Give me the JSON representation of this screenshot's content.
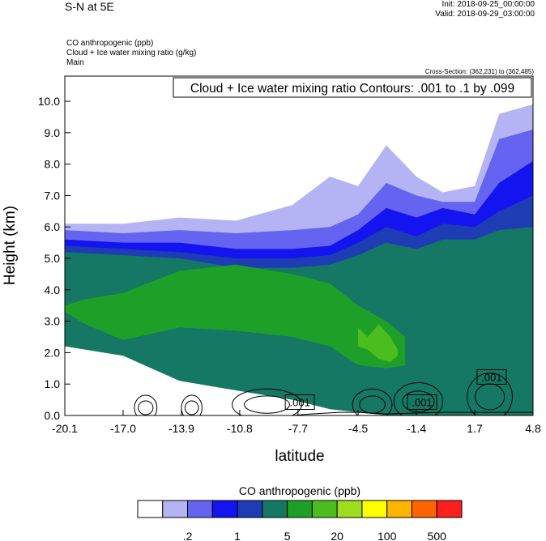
{
  "header": {
    "title": "S-N at 5E",
    "init": "Init: 2018-09-25_00:00:00",
    "valid": "Valid: 2018-09-29_03:00:00",
    "fields": [
      "CO anthropogenic   (ppb)",
      "Cloud + Ice water mixing ratio   (g/kg)",
      "Main"
    ],
    "cross_section": "Cross-Section: (362,231) to (362,485)"
  },
  "chart_data": {
    "type": "heatmap",
    "title": "",
    "xlabel": "latitude",
    "ylabel": "Height (km)",
    "xlim": [
      -20.1,
      4.8
    ],
    "ylim": [
      0.0,
      10.8
    ],
    "x_ticks": [
      "-20.1",
      "-17.0",
      "-13.9",
      "-10.8",
      "-7.7",
      "-4.5",
      "-1.4",
      "1.7",
      "4.8"
    ],
    "y_ticks": [
      "0.0",
      "1.0",
      "2.0",
      "3.0",
      "4.0",
      "5.0",
      "6.0",
      "7.0",
      "8.0",
      "9.0",
      "10.0"
    ],
    "contour_label": "Cloud + Ice water mixing ratio Contours: .001 to .1 by .099",
    "contour_value_labels": [
      {
        "text": ".001",
        "x": -7.6,
        "y": 0.4
      },
      {
        "text": ".001",
        "x": -1.1,
        "y": 0.4
      },
      {
        "text": ".001",
        "x": 2.6,
        "y": 1.2
      }
    ],
    "colorbar": {
      "title": "CO anthropogenic  (ppb)",
      "colors": [
        "#ffffff",
        "#b4b4f5",
        "#6464f0",
        "#1414f0",
        "#1e3cb4",
        "#147864",
        "#1ea028",
        "#4bbe1e",
        "#a0dc1e",
        "#ffff00",
        "#ffb400",
        "#ff6400",
        "#ff1e1e"
      ],
      "labels": [
        ".2",
        "1",
        "5",
        "20",
        "100",
        "500"
      ]
    },
    "bands": [
      {
        "color": "#b4b4f5",
        "x": [
          -20.1,
          -17,
          -14,
          -11,
          -8,
          -6,
          -4.5,
          -3,
          -1.4,
          0,
          1.7,
          3,
          4.8
        ],
        "top": [
          6.1,
          6.1,
          6.3,
          6.2,
          6.7,
          7.6,
          7.3,
          8.6,
          7.6,
          7.1,
          7.3,
          9.6,
          9.9
        ],
        "bottom": [
          2.7,
          2.4,
          1.5,
          1.2,
          0.9,
          0.6,
          0.6,
          0.6,
          0.9,
          0.9,
          0.9,
          0.9,
          0.9
        ]
      },
      {
        "color": "#6464f0",
        "x": [
          -20.1,
          -17,
          -14,
          -11,
          -8,
          -6,
          -4.5,
          -3,
          -1.4,
          0,
          1.7,
          3,
          4.8
        ],
        "top": [
          5.9,
          5.8,
          5.9,
          5.8,
          5.9,
          6.0,
          6.4,
          7.4,
          7.0,
          6.8,
          6.8,
          8.8,
          9.1
        ],
        "bottom": [
          2.6,
          2.3,
          1.4,
          1.1,
          0.8,
          0.5,
          0.5,
          0.4,
          0.7,
          0.7,
          0.7,
          0.7,
          0.7
        ]
      },
      {
        "color": "#1414f0",
        "x": [
          -20.1,
          -17,
          -14,
          -11,
          -8,
          -6,
          -4.5,
          -3,
          -1.4,
          0,
          1.7,
          3,
          4.8
        ],
        "top": [
          5.6,
          5.5,
          5.5,
          5.3,
          5.3,
          5.4,
          5.9,
          6.6,
          6.3,
          6.6,
          6.4,
          7.4,
          8.1
        ],
        "bottom": [
          2.4,
          2.1,
          1.3,
          1.0,
          0.7,
          0.4,
          0.3,
          0.3,
          0.4,
          0.5,
          0.5,
          0.5,
          0.5
        ]
      },
      {
        "color": "#1e3cb4",
        "x": [
          -20.1,
          -17,
          -14,
          -11,
          -8,
          -6,
          -4.5,
          -3,
          -1.4,
          0,
          1.7,
          3,
          4.8
        ],
        "top": [
          5.4,
          5.3,
          5.2,
          5.0,
          5.0,
          5.1,
          5.5,
          6.0,
          5.7,
          6.1,
          6.0,
          6.5,
          7.0
        ],
        "bottom": [
          2.3,
          2.0,
          1.2,
          0.9,
          0.6,
          0.3,
          0.2,
          0.1,
          0.2,
          0.3,
          0.3,
          0.3,
          0.3
        ]
      },
      {
        "color": "#147864",
        "x": [
          -20.1,
          -17,
          -14,
          -11,
          -8,
          -6,
          -4.5,
          -3,
          -1.4,
          0,
          1.7,
          3,
          4.8
        ],
        "top": [
          5.2,
          5.1,
          5.0,
          4.7,
          4.7,
          4.8,
          5.1,
          5.5,
          5.3,
          5.6,
          5.6,
          5.9,
          6.0
        ],
        "bottom": [
          2.2,
          1.9,
          1.1,
          0.8,
          0.5,
          0.2,
          0.1,
          0.0,
          0.0,
          0.0,
          0.0,
          0.0,
          0.0
        ]
      },
      {
        "color": "#1ea028",
        "x": [
          -20.1,
          -19,
          -17,
          -14,
          -11,
          -8,
          -6,
          -4.5,
          -3,
          -2
        ],
        "top": [
          3.5,
          3.7,
          3.9,
          4.6,
          4.8,
          4.5,
          4.2,
          3.5,
          3.0,
          2.5
        ],
        "bottom": [
          3.3,
          2.9,
          2.4,
          2.8,
          2.7,
          2.5,
          2.2,
          1.6,
          1.5,
          1.6
        ]
      },
      {
        "color": "#4bbe1e",
        "x": [
          -4.5,
          -4,
          -3.4,
          -2.8,
          -2.4
        ],
        "top": [
          2.8,
          2.5,
          2.9,
          2.5,
          2.1
        ],
        "bottom": [
          2.2,
          2.1,
          1.8,
          1.7,
          1.9
        ]
      }
    ],
    "clouds": [
      {
        "x": [
          -16.4,
          -15.2
        ],
        "y": [
          0.0,
          0.8
        ]
      },
      {
        "x": [
          -13.9,
          -12.8
        ],
        "y": [
          0.0,
          0.8
        ]
      },
      {
        "x": [
          -11.2,
          -7.5
        ],
        "y": [
          0.0,
          1.0
        ]
      },
      {
        "x": [
          -4.8,
          -2.7
        ],
        "y": [
          0.0,
          1.0
        ]
      },
      {
        "x": [
          -2.6,
          0.0
        ],
        "y": [
          0.0,
          1.2
        ]
      },
      {
        "x": [
          1.3,
          3.7
        ],
        "y": [
          0.0,
          1.5
        ]
      }
    ],
    "topography": {
      "x": [
        -20.1,
        -17,
        -14,
        -11,
        -8,
        -7,
        -5.5,
        -4.5,
        -3,
        -1.4,
        0,
        1.7,
        3,
        4.8
      ],
      "y": [
        0.0,
        0.0,
        0.0,
        0.0,
        0.0,
        0.05,
        0.1,
        0.1,
        0.05,
        0.08,
        0.1,
        0.1,
        0.1,
        0.1
      ]
    }
  }
}
